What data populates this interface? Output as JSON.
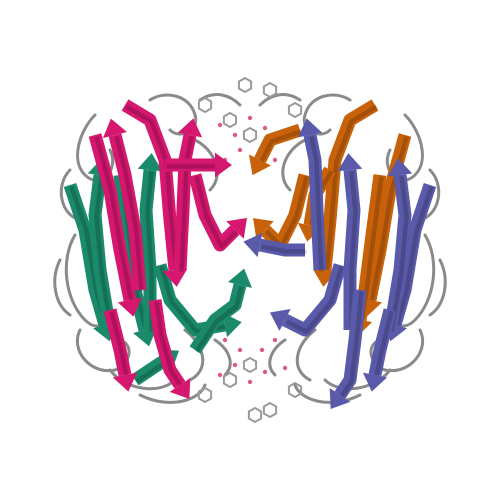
{
  "figure": {
    "kind": "protein-ribbon-cartoon",
    "background": "#ffffff",
    "chains": [
      {
        "name": "chain-a",
        "color": "#d6176f"
      },
      {
        "name": "chain-b",
        "color": "#1a8a6a"
      },
      {
        "name": "chain-c",
        "color": "#5a5aaa"
      },
      {
        "name": "chain-d",
        "color": "#c8620a"
      }
    ],
    "coil_color": "#8a8a8a",
    "ligand_colors": {
      "carbon": "#9a9a9a",
      "oxygen": "#e05b7a"
    }
  }
}
